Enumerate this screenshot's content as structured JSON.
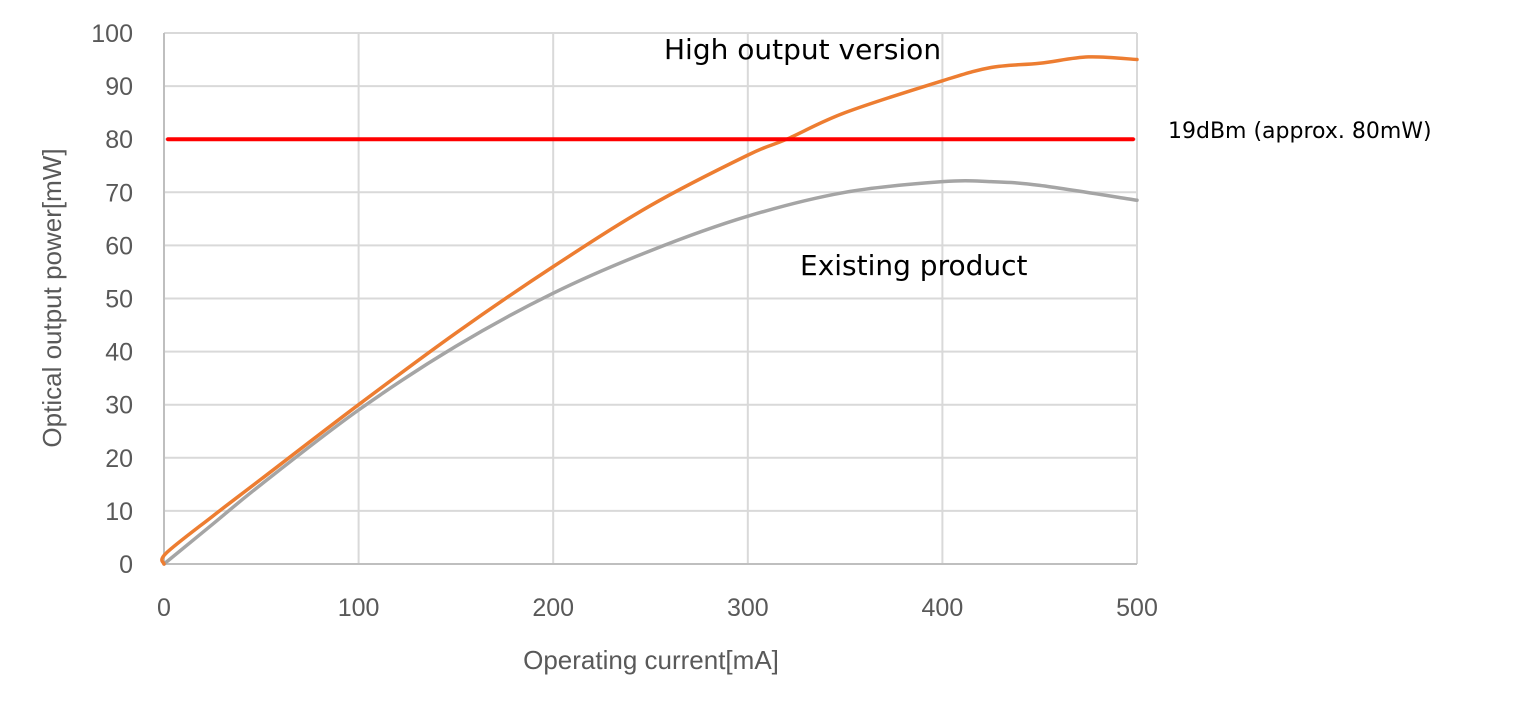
{
  "chart_data": {
    "type": "line",
    "title": "",
    "xlabel": "Operating current[mA]",
    "ylabel": "Optical output power[mW]",
    "xlim": [
      0,
      500
    ],
    "ylim": [
      0,
      100
    ],
    "xticks": [
      0,
      100,
      200,
      300,
      400,
      500
    ],
    "yticks": [
      0,
      10,
      20,
      30,
      40,
      50,
      60,
      70,
      80,
      90,
      100
    ],
    "grid": true,
    "legend": "none (inline annotations)",
    "series": [
      {
        "name": "High output version",
        "color": "#ED7D31",
        "x": [
          0,
          1,
          25,
          50,
          100,
          150,
          200,
          250,
          300,
          320,
          350,
          400,
          425,
          450,
          475,
          500
        ],
        "y": [
          0,
          2,
          9,
          16,
          30,
          43.5,
          56,
          67.5,
          77,
          80,
          85,
          91,
          93.5,
          94.3,
          95.5,
          95
        ]
      },
      {
        "name": "Existing product",
        "color": "#A5A5A5",
        "x": [
          0,
          25,
          50,
          100,
          150,
          200,
          250,
          300,
          350,
          400,
          425,
          450,
          500
        ],
        "y": [
          0,
          7.5,
          15,
          29,
          41,
          51,
          59,
          65.5,
          70,
          72,
          72,
          71.3,
          68.5
        ]
      },
      {
        "name": "19dBm (approx. 80mW)",
        "color": "#FF0000",
        "x": [
          0,
          500
        ],
        "y": [
          80,
          80
        ]
      }
    ],
    "annotations": [
      {
        "text": "High output version",
        "x": 257,
        "y": 97.5
      },
      {
        "text": "Existing product",
        "x": 325,
        "y": 56.5
      },
      {
        "text": "19dBm (approx. 80mW)",
        "position": "right of plot at y=80"
      }
    ]
  },
  "labels": {
    "xlabel": "Operating current[mA]",
    "ylabel": "Optical output power[mW]",
    "high": "High output version",
    "existing": "Existing product",
    "threshold": "19dBm (approx. 80mW)"
  },
  "xticks": [
    "0",
    "100",
    "200",
    "300",
    "400",
    "500"
  ],
  "yticks": [
    "0",
    "10",
    "20",
    "30",
    "40",
    "50",
    "60",
    "70",
    "80",
    "90",
    "100"
  ]
}
